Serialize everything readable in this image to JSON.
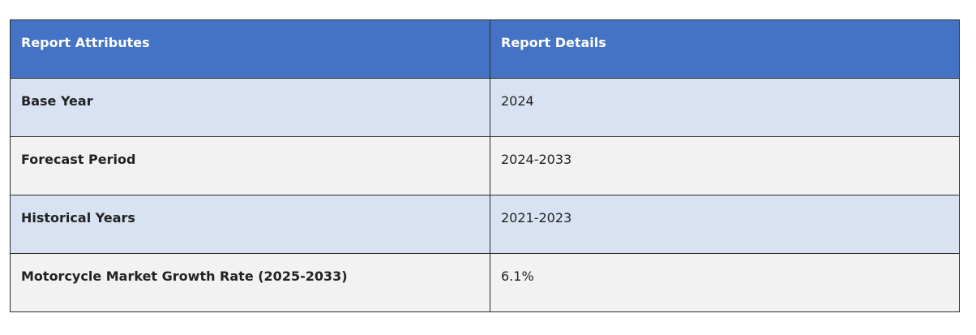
{
  "table": {
    "headers": {
      "attributes": "Report Attributes",
      "details": "Report Details"
    },
    "rows": [
      {
        "attribute": "Base Year",
        "detail": "2024"
      },
      {
        "attribute": "Forecast Period",
        "detail": "2024-2033"
      },
      {
        "attribute": "Historical Years",
        "detail": "2021-2023"
      },
      {
        "attribute": "Motorcycle Market Growth Rate (2025-2033)",
        "detail": "6.1%"
      }
    ],
    "colors": {
      "header_bg": "#4472c4",
      "row_odd_bg": "#d9e2f3",
      "row_even_bg": "#f2f2f2"
    }
  }
}
